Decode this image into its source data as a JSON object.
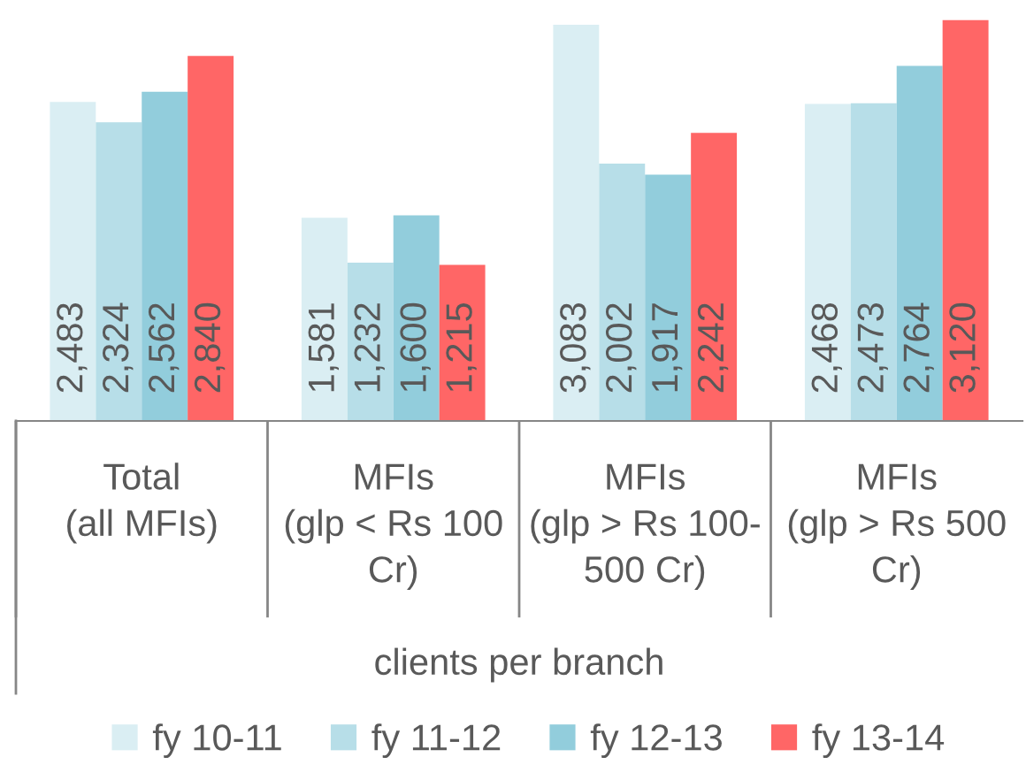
{
  "chart_data": {
    "type": "bar",
    "categories": [
      "Total\n(all MFIs)",
      "MFIs\n(glp < Rs 100\nCr)",
      "MFIs\n(glp > Rs 100-\n500 Cr)",
      "MFIs\n(glp > Rs 500\nCr)"
    ],
    "xlabel": "clients per branch",
    "series": [
      {
        "name": "fy 10-11",
        "color": "#daeef3",
        "values": [
          2483,
          1581,
          3083,
          2468
        ],
        "value_labels": [
          "2,483",
          "1,581",
          "3,083",
          "2,468"
        ]
      },
      {
        "name": "fy 11-12",
        "color": "#b7dee8",
        "values": [
          2324,
          1232,
          2002,
          2473
        ],
        "value_labels": [
          "2,324",
          "1,232",
          "2,002",
          "2,473"
        ]
      },
      {
        "name": "fy 12-13",
        "color": "#92cddc",
        "values": [
          2562,
          1600,
          1917,
          2764
        ],
        "value_labels": [
          "2,562",
          "1,600",
          "1,917",
          "2,764"
        ]
      },
      {
        "name": "fy 13-14",
        "color": "#ff6666",
        "values": [
          2840,
          1215,
          2242,
          3120
        ],
        "value_labels": [
          "2,840",
          "1,215",
          "2,242",
          "3,120"
        ]
      }
    ],
    "legend": "bottom"
  }
}
